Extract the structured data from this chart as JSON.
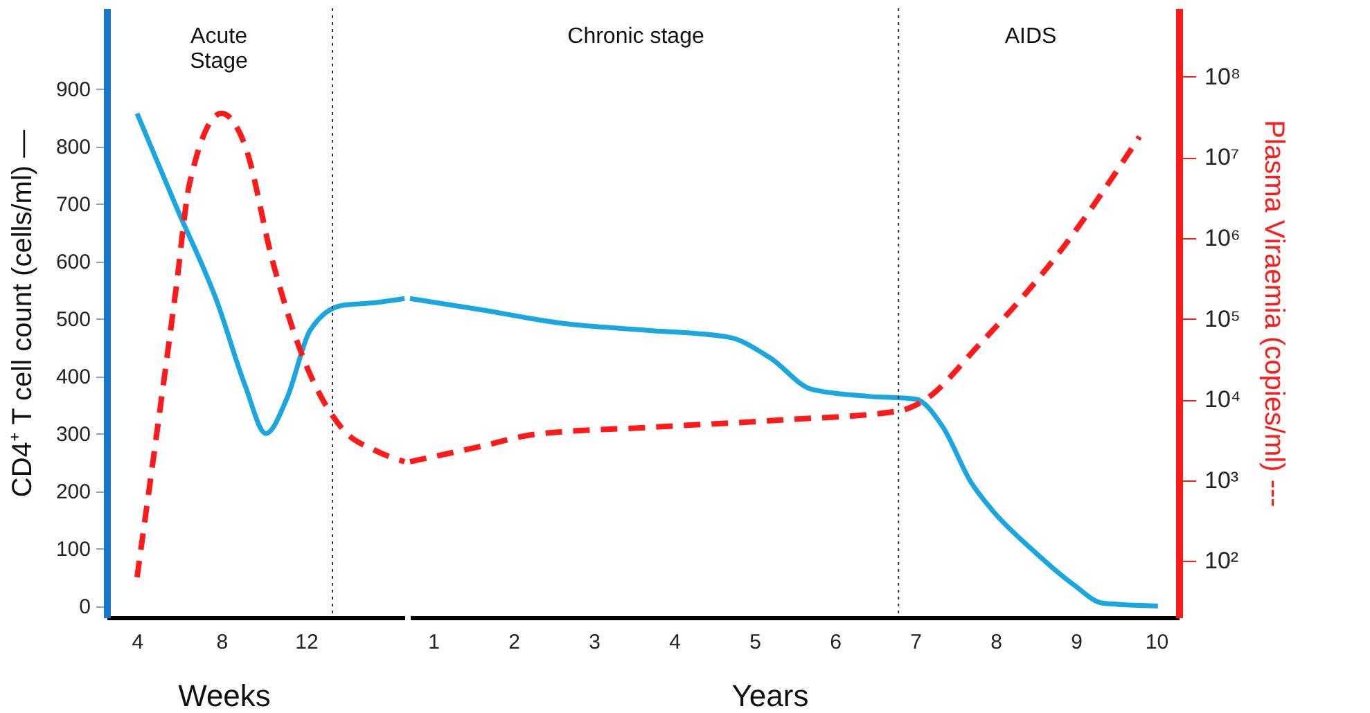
{
  "chart_data": [
    {
      "type": "line",
      "ylabel": "CD4⁺ T cell count (cells/ml) —",
      "annotations": [
        "Acute\nStage",
        "Weeks"
      ],
      "xlim": [
        2.56,
        16.66
      ],
      "xticks": [
        4,
        8,
        12
      ],
      "ylim": [
        -20,
        1040
      ],
      "yticks": [
        0,
        100,
        200,
        300,
        400,
        500,
        600,
        700,
        800,
        900
      ],
      "log": "y2",
      "y2lim": [
        20,
        700000000
      ],
      "ref_lines": [
        {
          "axis": "x",
          "value": 13.25,
          "color": "#333333",
          "line_style": "dotted"
        }
      ],
      "series": [
        {
          "color": "#1aa7e0",
          "line_style": "solid",
          "x": [
            4,
            5.84,
            7.8,
            9.11,
            10.1,
            11.08,
            12.2,
            13.7,
            15.34,
            16.66
          ],
          "values": [
            857,
            696,
            528,
            384,
            300,
            360,
            480,
            523,
            528,
            535
          ]
        },
        {
          "color": "#ff1a1a",
          "line_style": "dashed",
          "axis": "y2",
          "x": [
            4,
            5.84,
            6.49,
            8,
            9.11,
            10.43,
            11.74,
            13.7,
            15.34,
            16.66
          ],
          "values": [
            63,
            230000,
            4800000,
            35000000,
            14000000,
            500000,
            40000,
            4400,
            2300,
            1700
          ]
        }
      ]
    },
    {
      "type": "line",
      "y2label": "Plasma Viraemia (copies/ml) ---",
      "annotations": [
        "Chronic stage",
        "AIDS",
        "Years"
      ],
      "xlim": [
        0.71,
        10.28
      ],
      "xticks": [
        1,
        2,
        3,
        4,
        5,
        6,
        7,
        8,
        9,
        10
      ],
      "ylim": [
        -20,
        1040
      ],
      "log": "y2",
      "y2lim": [
        20,
        700000000
      ],
      "y2ticks": [
        {
          "value": 100,
          "label": "10²"
        },
        {
          "value": 1000,
          "label": "10³"
        },
        {
          "value": 10000,
          "label": "10⁴"
        },
        {
          "value": 100000,
          "label": "10⁵"
        },
        {
          "value": 1000000,
          "label": "10⁶"
        },
        {
          "value": 10000000,
          "label": "10⁷"
        },
        {
          "value": 100000000,
          "label": "10⁸"
        }
      ],
      "ref_lines": [
        {
          "axis": "x",
          "value": 6.79,
          "color": "#333333",
          "line_style": "dotted"
        }
      ],
      "series": [
        {
          "color": "#1aa7e0",
          "line_style": "solid",
          "x": [
            0.71,
            1.57,
            2.6,
            3.64,
            4.67,
            5.19,
            5.71,
            6.4,
            7.0,
            7.34,
            7.69,
            7.95,
            8.47,
            8.98,
            9.33,
            10.02
          ],
          "values": [
            535,
            516,
            492,
            480,
            468,
            432,
            377,
            365,
            360,
            312,
            216,
            168,
            96,
            36,
            5,
            0
          ]
        },
        {
          "color": "#ff1a1a",
          "line_style": "dashed",
          "axis": "y2",
          "x": [
            0.71,
            1.57,
            2.26,
            3.64,
            5.36,
            6.79,
            7.09,
            7.78,
            8.81,
            9.79
          ],
          "values": [
            1700,
            2600,
            3700,
            4500,
            5600,
            7200,
            9500,
            46000,
            700000,
            18000000
          ]
        }
      ]
    }
  ]
}
